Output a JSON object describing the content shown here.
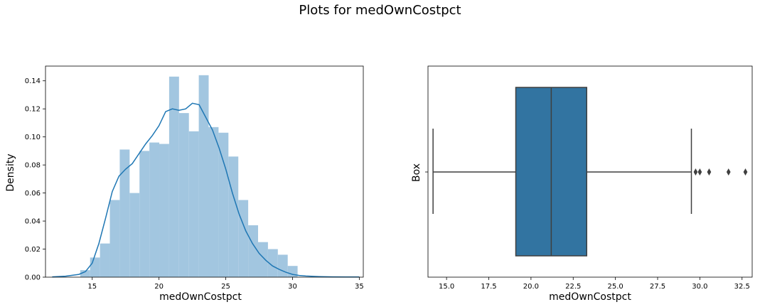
{
  "suptitle": "Plots for medOwnCostpct",
  "colors": {
    "hist": "#a2c6e0",
    "kde": "#1f77b4",
    "box": "#3274a1",
    "line": "#3f3f3f"
  },
  "chart_data": [
    {
      "type": "histogram",
      "xlabel": "medOwnCostpct",
      "ylabel": "Density",
      "xlim": [
        11.5,
        35.3
      ],
      "ylim": [
        0,
        0.1505
      ],
      "xticks": [
        15,
        20,
        25,
        30,
        35
      ],
      "yticks": [
        "0.00",
        "0.02",
        "0.04",
        "0.06",
        "0.08",
        "0.10",
        "0.12",
        "0.14"
      ],
      "bin_width": 0.74,
      "bins": [
        {
          "x0": 14.1,
          "value": 0.005
        },
        {
          "x0": 14.84,
          "value": 0.014
        },
        {
          "x0": 15.58,
          "value": 0.024
        },
        {
          "x0": 16.32,
          "value": 0.055
        },
        {
          "x0": 17.06,
          "value": 0.091
        },
        {
          "x0": 17.8,
          "value": 0.06
        },
        {
          "x0": 18.54,
          "value": 0.09
        },
        {
          "x0": 19.28,
          "value": 0.096
        },
        {
          "x0": 20.02,
          "value": 0.095
        },
        {
          "x0": 20.76,
          "value": 0.143
        },
        {
          "x0": 21.5,
          "value": 0.117
        },
        {
          "x0": 22.24,
          "value": 0.104
        },
        {
          "x0": 22.98,
          "value": 0.144
        },
        {
          "x0": 23.72,
          "value": 0.107
        },
        {
          "x0": 24.46,
          "value": 0.103
        },
        {
          "x0": 25.2,
          "value": 0.086
        },
        {
          "x0": 25.94,
          "value": 0.055
        },
        {
          "x0": 26.68,
          "value": 0.037
        },
        {
          "x0": 27.42,
          "value": 0.025
        },
        {
          "x0": 28.16,
          "value": 0.02
        },
        {
          "x0": 28.9,
          "value": 0.016
        },
        {
          "x0": 29.64,
          "value": 0.008
        }
      ],
      "kde": {
        "x": [
          12.0,
          13.0,
          14.0,
          14.5,
          15.0,
          15.5,
          16.0,
          16.5,
          17.0,
          17.5,
          18.0,
          18.5,
          19.0,
          19.5,
          20.0,
          20.5,
          21.0,
          21.5,
          22.0,
          22.5,
          23.0,
          23.5,
          24.0,
          24.5,
          25.0,
          25.5,
          26.0,
          26.5,
          27.0,
          27.5,
          28.0,
          28.5,
          29.0,
          29.5,
          30.0,
          30.5,
          31.0,
          32.0,
          33.0,
          34.0,
          35.0
        ],
        "y": [
          0.0002,
          0.0007,
          0.002,
          0.004,
          0.01,
          0.024,
          0.042,
          0.061,
          0.072,
          0.077,
          0.081,
          0.088,
          0.095,
          0.101,
          0.108,
          0.118,
          0.12,
          0.119,
          0.12,
          0.124,
          0.123,
          0.114,
          0.105,
          0.092,
          0.077,
          0.06,
          0.045,
          0.033,
          0.024,
          0.017,
          0.012,
          0.008,
          0.0055,
          0.0035,
          0.002,
          0.0012,
          0.0008,
          0.0004,
          0.0002,
          0.0001,
          0.0001
        ]
      }
    },
    {
      "type": "box",
      "xlabel": "medOwnCostpct",
      "ylabel": "Box",
      "xlim": [
        13.9,
        33.1
      ],
      "xticks": [
        "15.0",
        "17.5",
        "20.0",
        "22.5",
        "25.0",
        "27.5",
        "30.0",
        "32.5"
      ],
      "whisker_low": 14.2,
      "q1": 19.1,
      "median": 21.2,
      "q3": 23.3,
      "whisker_high": 29.5,
      "outliers": [
        29.75,
        30.0,
        30.55,
        31.7,
        32.7
      ]
    }
  ]
}
